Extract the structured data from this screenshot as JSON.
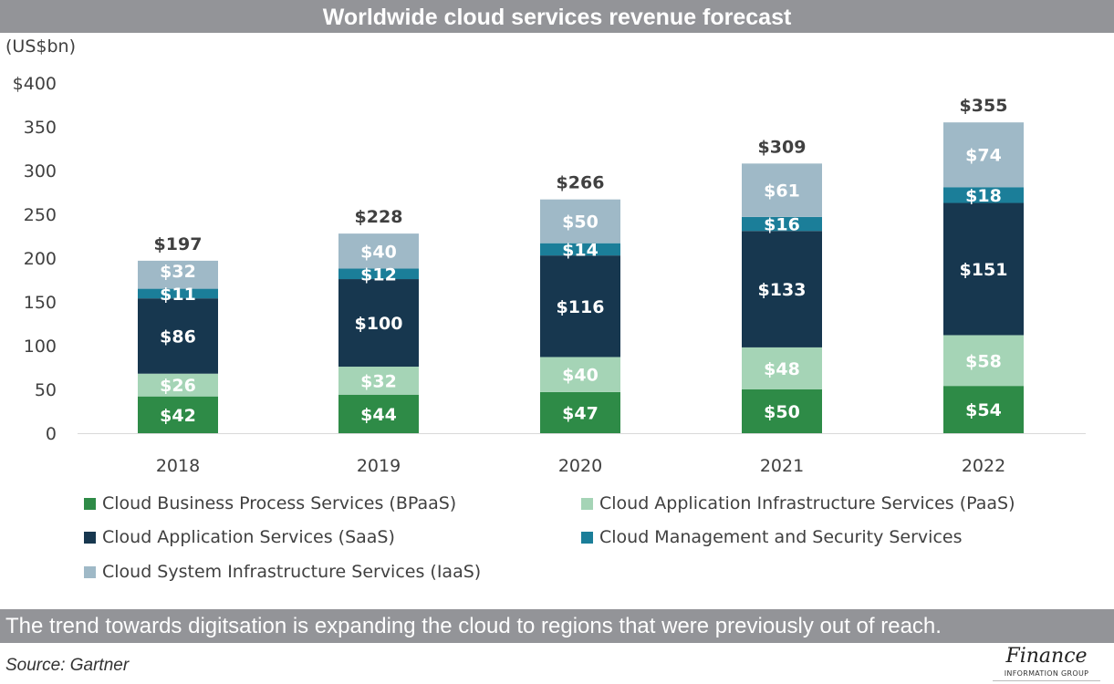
{
  "chart_data": {
    "type": "bar",
    "stacked": true,
    "title": "Worldwide cloud services revenue forecast",
    "ylabel": "(US$bn)",
    "ylim": [
      0,
      400
    ],
    "yticks": [
      "0",
      "50",
      "100",
      "150",
      "200",
      "250",
      "300",
      "350",
      "$400"
    ],
    "categories": [
      "2018",
      "2019",
      "2020",
      "2021",
      "2022"
    ],
    "totals": [
      "$197",
      "$228",
      "$266",
      "$309",
      "$355"
    ],
    "series": [
      {
        "name": "Cloud Business Process Services (BPaaS)",
        "color": "#2e8b47",
        "label_color": "#ffffff",
        "values": [
          42,
          44,
          47,
          50,
          54
        ]
      },
      {
        "name": "Cloud Application Infrastructure Services (PaaS)",
        "color": "#a5d4b6",
        "label_color": "#ffffff",
        "values": [
          26,
          32,
          40,
          48,
          58
        ]
      },
      {
        "name": "Cloud Application Services (SaaS)",
        "color": "#17374f",
        "label_color": "#ffffff",
        "values": [
          86,
          100,
          116,
          133,
          151
        ]
      },
      {
        "name": "Cloud Management and Security Services",
        "color": "#1b7e99",
        "label_color": "#ffffff",
        "values": [
          11,
          12,
          14,
          16,
          18
        ]
      },
      {
        "name": "Cloud System Infrastructure Services (IaaS)",
        "color": "#9fb9c7",
        "label_color": "#ffffff",
        "values": [
          32,
          40,
          50,
          61,
          74
        ]
      }
    ],
    "legend": "bottom",
    "grid": false
  },
  "footer": {
    "caption": "The trend towards digitsation is expanding the cloud to regions that were previously out of reach.",
    "source": "Source: Gartner"
  },
  "logo": {
    "line1": "Finance",
    "line2": "INFORMATION GROUP"
  }
}
